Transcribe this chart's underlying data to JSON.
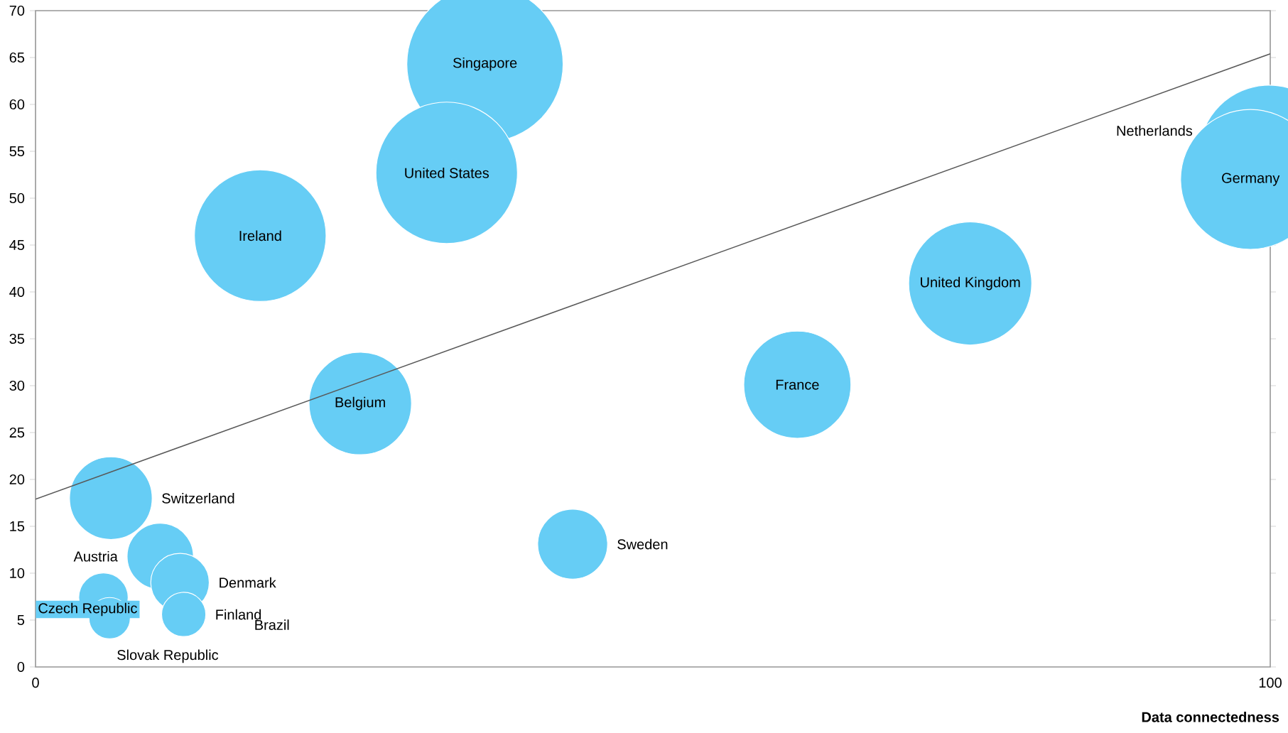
{
  "chart_data": {
    "type": "bubble",
    "xlabel": "Data connectedness",
    "xlim": [
      0,
      100
    ],
    "xticks": [
      0,
      100
    ],
    "ylim": [
      0,
      70
    ],
    "yticks": [
      0,
      5,
      10,
      15,
      20,
      25,
      30,
      35,
      40,
      45,
      50,
      55,
      60,
      65,
      70
    ],
    "grid": false,
    "annotations": [
      "Brazil"
    ],
    "series": [
      {
        "name": "Singapore",
        "color": "#66cdf5",
        "x": [
          36.4
        ],
        "values": [
          64.3
        ],
        "sizes": [
          1
        ]
      },
      {
        "name": "United States",
        "color": "#66cdf5",
        "x": [
          33.3
        ],
        "values": [
          52.7
        ],
        "sizes": [
          0.82
        ]
      },
      {
        "name": "Ireland",
        "color": "#66cdf5",
        "x": [
          18.2
        ],
        "values": [
          46.0
        ],
        "sizes": [
          0.71
        ]
      },
      {
        "name": "Belgium",
        "color": "#66cdf5",
        "x": [
          26.3
        ],
        "values": [
          28.1
        ],
        "sizes": [
          0.43
        ]
      },
      {
        "name": "Switzerland",
        "color": "#66cdf5",
        "x": [
          6.1
        ],
        "values": [
          18.0
        ],
        "sizes": [
          0.28
        ]
      },
      {
        "name": "Austria",
        "color": "#66cdf5",
        "x": [
          10.1
        ],
        "values": [
          11.8
        ],
        "sizes": [
          0.18
        ]
      },
      {
        "name": "Denmark",
        "color": "#66cdf5",
        "x": [
          11.7
        ],
        "values": [
          9.0
        ],
        "sizes": [
          0.14
        ]
      },
      {
        "name": "Finland",
        "color": "#66cdf5",
        "x": [
          12.0
        ],
        "values": [
          5.6
        ],
        "sizes": [
          0.08
        ]
      },
      {
        "name": "Czech Republic",
        "color": "#66cdf5",
        "x": [
          5.5
        ],
        "values": [
          7.4
        ],
        "sizes": [
          0.1
        ]
      },
      {
        "name": "Slovak Republic",
        "color": "#66cdf5",
        "x": [
          6.0
        ],
        "values": [
          5.2
        ],
        "sizes": [
          0.07
        ]
      },
      {
        "name": "Sweden",
        "color": "#66cdf5",
        "x": [
          43.5
        ],
        "values": [
          13.1
        ],
        "sizes": [
          0.2
        ]
      },
      {
        "name": "France",
        "color": "#66cdf5",
        "x": [
          61.7
        ],
        "values": [
          30.1
        ],
        "sizes": [
          0.47
        ]
      },
      {
        "name": "United Kingdom",
        "color": "#66cdf5",
        "x": [
          75.7
        ],
        "values": [
          40.9
        ],
        "sizes": [
          0.62
        ]
      },
      {
        "name": "Netherlands",
        "color": "#66cdf5",
        "x": [
          99.9
        ],
        "values": [
          54.6
        ],
        "sizes": [
          0.8
        ]
      },
      {
        "name": "Germany",
        "color": "#66cdf5",
        "x": [
          98.4
        ],
        "values": [
          52.0
        ],
        "sizes": [
          0.8
        ]
      },
      {
        "type": "line",
        "color": "#595959",
        "x": [
          0,
          100
        ],
        "values": [
          17.9,
          65.4
        ]
      }
    ]
  }
}
